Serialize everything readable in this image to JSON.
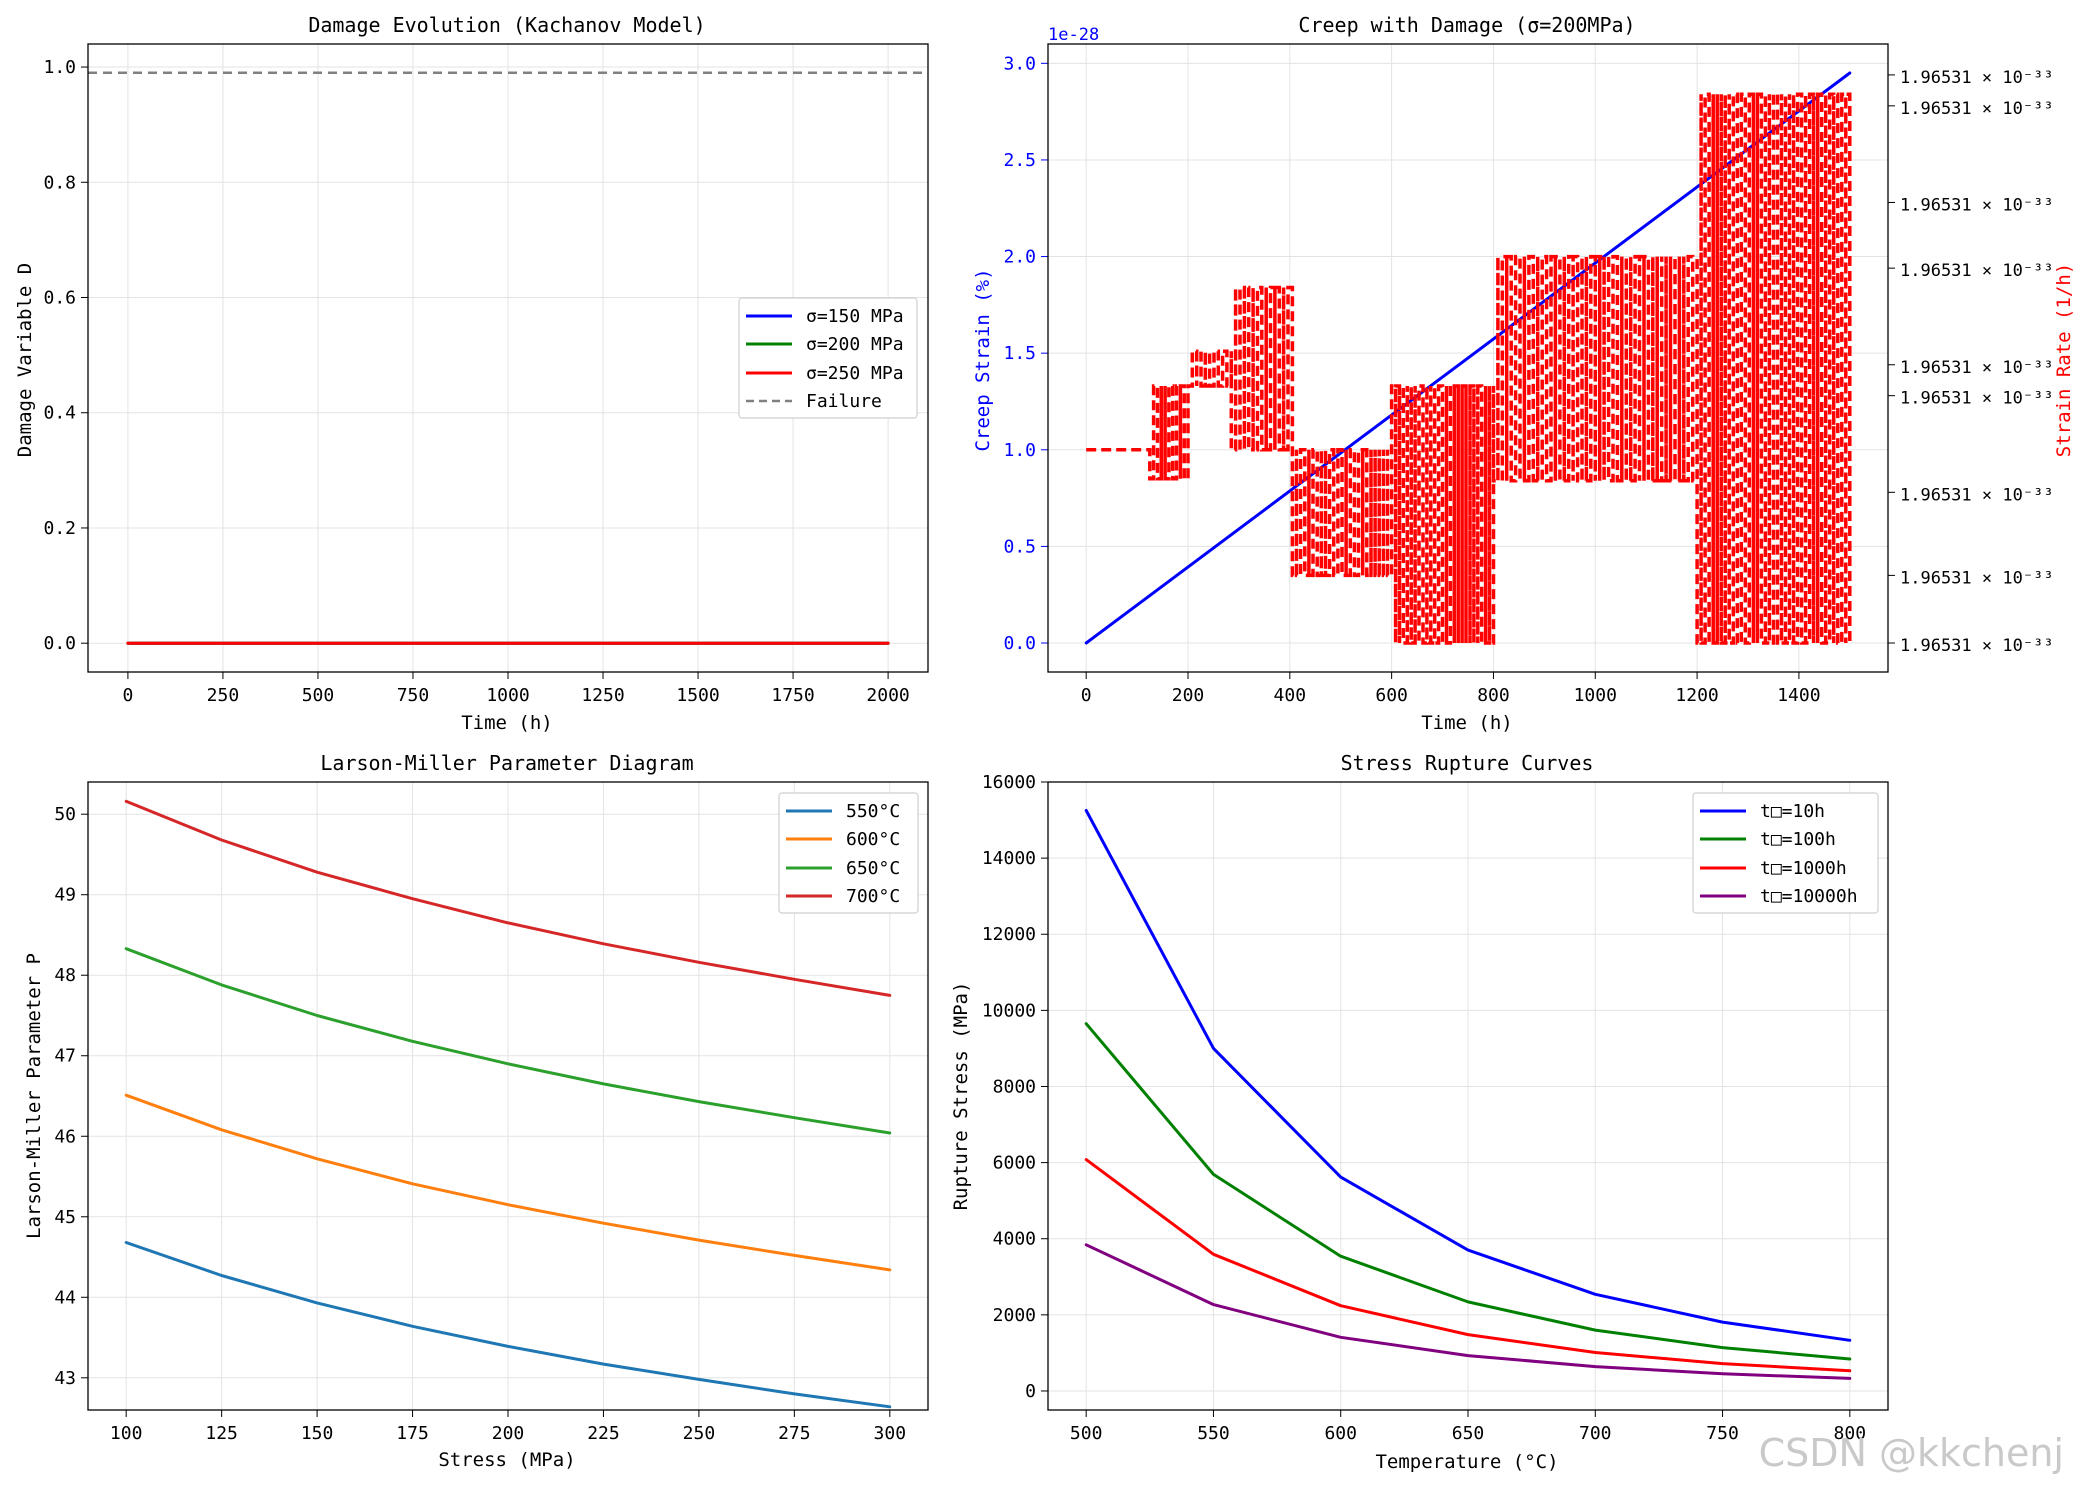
{
  "watermark": "CSDN @kkchenj",
  "chart_data": [
    {
      "id": "damage",
      "type": "line",
      "title": "Damage Evolution (Kachanov Model)",
      "xlabel": "Time (h)",
      "ylabel": "Damage Variable D",
      "xlim": [
        -105,
        2105
      ],
      "ylim": [
        -0.05,
        1.04
      ],
      "xticks": [
        0,
        250,
        500,
        750,
        1000,
        1250,
        1500,
        1750,
        2000
      ],
      "xtick_labels": [
        "0",
        "250",
        "500",
        "750",
        "1000",
        "1250",
        "1500",
        "1750",
        "2000"
      ],
      "yticks": [
        0.0,
        0.2,
        0.4,
        0.6,
        0.8,
        1.0
      ],
      "ytick_labels": [
        "0.0",
        "0.2",
        "0.4",
        "0.6",
        "0.8",
        "1.0"
      ],
      "grid": true,
      "legend_position": "center-right",
      "series": [
        {
          "name": "σ=150 MPa",
          "color": "#0000ff",
          "x": [
            0,
            2000
          ],
          "y": [
            0,
            0
          ]
        },
        {
          "name": "σ=200 MPa",
          "color": "#008000",
          "x": [
            0,
            2000
          ],
          "y": [
            0,
            0
          ]
        },
        {
          "name": "σ=250 MPa",
          "color": "#ff0000",
          "x": [
            0,
            2000
          ],
          "y": [
            0,
            0
          ]
        },
        {
          "name": "Failure",
          "color": "#808080",
          "dashed": true,
          "hline": 0.99
        }
      ]
    },
    {
      "id": "creep",
      "type": "line",
      "title": "Creep with Damage (σ=200MPa)",
      "xlabel": "Time (h)",
      "ylabel": "Creep Strain (%)",
      "y2label": "Strain Rate (1/h)",
      "offset_text": "1e-28",
      "xlim": [
        -75,
        1575
      ],
      "ylim": [
        -0.15,
        3.1
      ],
      "xticks": [
        0,
        200,
        400,
        600,
        800,
        1000,
        1200,
        1400
      ],
      "xtick_labels": [
        "0",
        "200",
        "400",
        "600",
        "800",
        "1000",
        "1200",
        "1400"
      ],
      "yticks": [
        0.0,
        0.5,
        1.0,
        1.5,
        2.0,
        2.5,
        3.0
      ],
      "ytick_labels": [
        "0.0",
        "0.5",
        "1.0",
        "1.5",
        "2.0",
        "2.5",
        "3.0"
      ],
      "y2ticks": [
        0.0,
        0.35,
        0.78,
        1.28,
        1.44,
        1.94,
        2.28,
        2.78,
        2.94
      ],
      "y2tick_labels": [
        "1.96531 × 10⁻³³",
        "1.96531 × 10⁻³³",
        "1.96531 × 10⁻³³",
        "1.96531 × 10⁻³³",
        "1.96531 × 10⁻³³",
        "1.96531 × 10⁻³³",
        "1.96531 × 10⁻³³",
        "1.96531 × 10⁻³³",
        "1.96531 × 10⁻³³"
      ],
      "grid": true,
      "series": [
        {
          "name": "Creep Strain",
          "color": "#0000ff",
          "x": [
            0,
            1500
          ],
          "y": [
            0,
            2.95
          ]
        },
        {
          "name": "Strain Rate",
          "color": "#ff0000",
          "dashed": true,
          "axis": "right",
          "bands": [
            {
              "x0": 0,
              "x1": 125,
              "ymin": 1.0,
              "ymax": 1.0,
              "count": 1
            },
            {
              "x0": 125,
              "x1": 200,
              "ymin": 0.85,
              "ymax": 1.33,
              "count": 10
            },
            {
              "x0": 200,
              "x1": 285,
              "ymin": 1.33,
              "ymax": 1.51,
              "count": 10
            },
            {
              "x0": 285,
              "x1": 405,
              "ymin": 1.0,
              "ymax": 1.84,
              "count": 14
            },
            {
              "x0": 405,
              "x1": 600,
              "ymin": 0.35,
              "ymax": 1.0,
              "count": 24
            },
            {
              "x0": 600,
              "x1": 800,
              "ymin": 0.0,
              "ymax": 1.33,
              "count": 26
            },
            {
              "x0": 800,
              "x1": 1200,
              "ymin": 0.84,
              "ymax": 2.0,
              "count": 46
            },
            {
              "x0": 1200,
              "x1": 1500,
              "ymin": 0.0,
              "ymax": 2.84,
              "count": 38
            }
          ]
        }
      ]
    },
    {
      "id": "larson",
      "type": "line",
      "title": "Larson-Miller Parameter Diagram",
      "xlabel": "Stress (MPa)",
      "ylabel": "Larson-Miller Parameter P",
      "xlim": [
        90,
        310
      ],
      "ylim": [
        42.6,
        50.4
      ],
      "xticks": [
        100,
        125,
        150,
        175,
        200,
        225,
        250,
        275,
        300
      ],
      "xtick_labels": [
        "100",
        "125",
        "150",
        "175",
        "200",
        "225",
        "250",
        "275",
        "300"
      ],
      "yticks": [
        43,
        44,
        45,
        46,
        47,
        48,
        49,
        50
      ],
      "ytick_labels": [
        "43",
        "44",
        "45",
        "46",
        "47",
        "48",
        "49",
        "50"
      ],
      "grid": true,
      "legend_position": "top-right",
      "series": [
        {
          "name": "550°C",
          "color": "#1f77b4",
          "x": [
            100,
            125,
            150,
            175,
            200,
            225,
            250,
            275,
            300
          ],
          "y": [
            44.68,
            44.27,
            43.93,
            43.64,
            43.39,
            43.17,
            42.98,
            42.8,
            42.64
          ]
        },
        {
          "name": "600°C",
          "color": "#ff7f0e",
          "x": [
            100,
            125,
            150,
            175,
            200,
            225,
            250,
            275,
            300
          ],
          "y": [
            46.51,
            46.08,
            45.72,
            45.41,
            45.15,
            44.92,
            44.71,
            44.52,
            44.34
          ]
        },
        {
          "name": "650°C",
          "color": "#2ca02c",
          "x": [
            100,
            125,
            150,
            175,
            200,
            225,
            250,
            275,
            300
          ],
          "y": [
            48.33,
            47.88,
            47.5,
            47.18,
            46.9,
            46.65,
            46.43,
            46.23,
            46.04
          ]
        },
        {
          "name": "700°C",
          "color": "#d62728",
          "x": [
            100,
            125,
            150,
            175,
            200,
            225,
            250,
            275,
            300
          ],
          "y": [
            50.16,
            49.68,
            49.28,
            48.95,
            48.65,
            48.39,
            48.16,
            47.95,
            47.75
          ]
        }
      ]
    },
    {
      "id": "rupture",
      "type": "line",
      "title": "Stress Rupture Curves",
      "xlabel": "Temperature (°C)",
      "ylabel": "Rupture Stress (MPa)",
      "xlim": [
        485,
        815
      ],
      "ylim": [
        -500,
        16000
      ],
      "xticks": [
        500,
        550,
        600,
        650,
        700,
        750,
        800
      ],
      "xtick_labels": [
        "500",
        "550",
        "600",
        "650",
        "700",
        "750",
        "800"
      ],
      "yticks": [
        0,
        2000,
        4000,
        6000,
        8000,
        10000,
        12000,
        14000,
        16000
      ],
      "ytick_labels": [
        "0",
        "2000",
        "4000",
        "6000",
        "8000",
        "10000",
        "12000",
        "14000",
        "16000"
      ],
      "grid": true,
      "legend_position": "top-right",
      "series": [
        {
          "name": "t□=10h",
          "color": "#0000ff",
          "x": [
            500,
            550,
            600,
            650,
            700,
            750,
            800
          ],
          "y": [
            15250,
            9000,
            5620,
            3700,
            2540,
            1810,
            1330
          ]
        },
        {
          "name": "t□=100h",
          "color": "#008000",
          "x": [
            500,
            550,
            600,
            650,
            700,
            750,
            800
          ],
          "y": [
            9650,
            5690,
            3540,
            2340,
            1600,
            1140,
            840
          ]
        },
        {
          "name": "t□=1000h",
          "color": "#ff0000",
          "x": [
            500,
            550,
            600,
            650,
            700,
            750,
            800
          ],
          "y": [
            6080,
            3590,
            2240,
            1480,
            1010,
            720,
            530
          ]
        },
        {
          "name": "t□=10000h",
          "color": "#800080",
          "x": [
            500,
            550,
            600,
            650,
            700,
            750,
            800
          ],
          "y": [
            3840,
            2270,
            1410,
            930,
            640,
            450,
            330
          ]
        }
      ]
    }
  ]
}
